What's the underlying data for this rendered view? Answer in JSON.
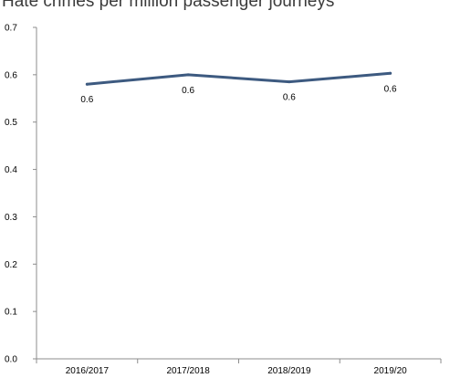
{
  "chart_data": {
    "type": "line",
    "title": "Hate crimes per million passenger journeys",
    "categories": [
      "2016/2017",
      "2017/2018",
      "2018/2019",
      "2019/20"
    ],
    "series": [
      {
        "values": [
          0.58,
          0.6,
          0.585,
          0.603
        ]
      }
    ],
    "data_labels": [
      "0.6",
      "0.6",
      "0.6",
      "0.6"
    ],
    "y_ticks": [
      "0.0",
      "0.1",
      "0.2",
      "0.3",
      "0.4",
      "0.5",
      "0.6",
      "0.7"
    ],
    "ylim": [
      0,
      0.7
    ],
    "xlabel": "",
    "ylabel": "",
    "grid": false,
    "line_color": "#3d5a80"
  }
}
